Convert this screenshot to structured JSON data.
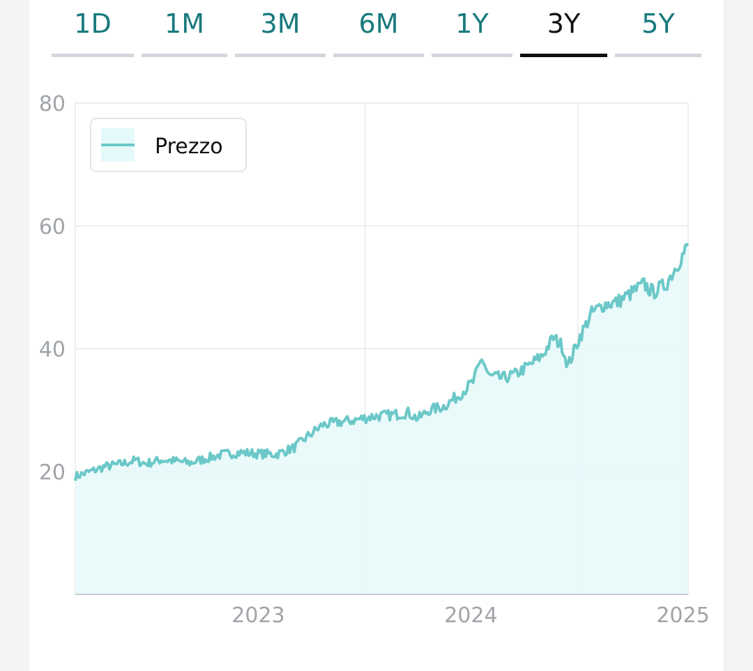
{
  "tabs": [
    {
      "label": "1D",
      "active": false
    },
    {
      "label": "1M",
      "active": false
    },
    {
      "label": "3M",
      "active": false
    },
    {
      "label": "6M",
      "active": false
    },
    {
      "label": "1Y",
      "active": false
    },
    {
      "label": "3Y",
      "active": true
    },
    {
      "label": "5Y",
      "active": false
    }
  ],
  "colors": {
    "tab_text": "#17797d",
    "tab_active_text": "#111111",
    "line": "#6cc8c8",
    "fill": "#e6f9fa",
    "grid": "#e6e8ea"
  },
  "chart_data": {
    "type": "area",
    "legend": {
      "entries": [
        "Prezzo"
      ],
      "position": "top-left"
    },
    "ylim": [
      0,
      80
    ],
    "yticks": [
      20,
      40,
      60,
      80
    ],
    "xlim": [
      "2022-08-20",
      "2025-07-10"
    ],
    "xticks": [
      "2023",
      "2024",
      "2025"
    ],
    "grid": true,
    "series": [
      {
        "name": "Prezzo",
        "points": [
          [
            "2022-08-20",
            19.2
          ],
          [
            "2022-09-15",
            20.0
          ],
          [
            "2022-10-10",
            20.8
          ],
          [
            "2022-11-05",
            21.2
          ],
          [
            "2022-12-01",
            21.8
          ],
          [
            "2022-12-20",
            21.3
          ],
          [
            "2023-01-15",
            21.9
          ],
          [
            "2023-02-10",
            21.7
          ],
          [
            "2023-03-05",
            21.4
          ],
          [
            "2023-04-01",
            22.1
          ],
          [
            "2023-05-01",
            22.8
          ],
          [
            "2023-06-01",
            23.1
          ],
          [
            "2023-07-01",
            22.9
          ],
          [
            "2023-08-01",
            22.8
          ],
          [
            "2023-09-01",
            23.9
          ],
          [
            "2023-09-25",
            25.8
          ],
          [
            "2023-10-20",
            27.6
          ],
          [
            "2023-11-15",
            28.0
          ],
          [
            "2023-12-15",
            28.4
          ],
          [
            "2024-01-15",
            29.0
          ],
          [
            "2024-02-15",
            29.2
          ],
          [
            "2024-03-15",
            29.6
          ],
          [
            "2024-04-01",
            28.6
          ],
          [
            "2024-04-20",
            30.0
          ],
          [
            "2024-05-15",
            30.6
          ],
          [
            "2024-06-10",
            32.4
          ],
          [
            "2024-07-05",
            34.6
          ],
          [
            "2024-07-20",
            38.5
          ],
          [
            "2024-08-01",
            35.5
          ],
          [
            "2024-08-25",
            35.2
          ],
          [
            "2024-09-15",
            35.8
          ],
          [
            "2024-10-10",
            37.3
          ],
          [
            "2024-11-01",
            38.9
          ],
          [
            "2024-11-20",
            41.8
          ],
          [
            "2024-12-05",
            40.5
          ],
          [
            "2024-12-15",
            37.2
          ],
          [
            "2025-01-05",
            42.0
          ],
          [
            "2025-01-25",
            45.8
          ],
          [
            "2025-02-15",
            47.2
          ],
          [
            "2025-03-10",
            47.6
          ],
          [
            "2025-04-01",
            48.9
          ],
          [
            "2025-04-25",
            50.5
          ],
          [
            "2025-05-10",
            49.2
          ],
          [
            "2025-06-01",
            50.4
          ],
          [
            "2025-06-20",
            53.5
          ],
          [
            "2025-07-10",
            56.8
          ]
        ]
      }
    ]
  }
}
